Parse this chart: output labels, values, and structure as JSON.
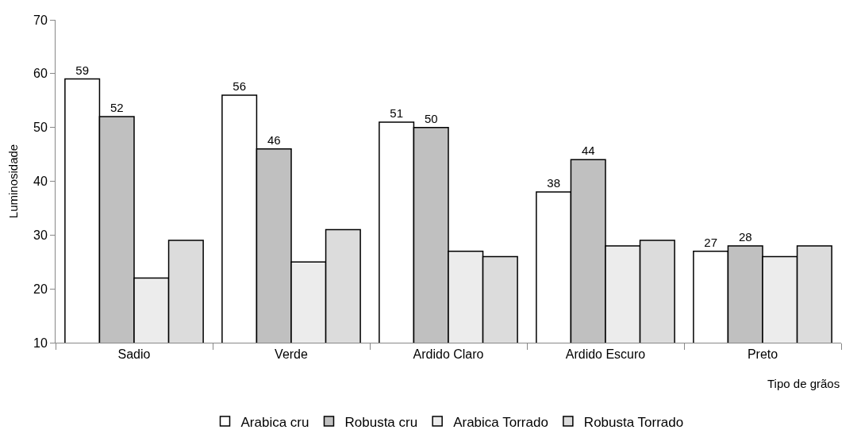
{
  "chart_data": {
    "type": "bar",
    "xlabel": "Tipo de grãos",
    "ylabel": "Luminosidade",
    "categories": [
      "Sadio",
      "Verde",
      "Ardido Claro",
      "Ardido Escuro",
      "Preto"
    ],
    "series": [
      {
        "name": "Arabica cru",
        "color": "#ffffff",
        "values": [
          59,
          56,
          51,
          38,
          27
        ],
        "value_labels": [
          "59",
          "56",
          "51",
          "38",
          "27"
        ]
      },
      {
        "name": "Robusta cru",
        "color": "#c0c0c0",
        "values": [
          52,
          46,
          50,
          44,
          28
        ],
        "value_labels": [
          "52",
          "46",
          "50",
          "44",
          "28"
        ]
      },
      {
        "name": "Arabica Torrado",
        "color": "#ececec",
        "values": [
          22,
          25,
          27,
          28,
          26
        ]
      },
      {
        "name": "Robusta Torrado",
        "color": "#dcdcdc",
        "values": [
          29,
          31,
          26,
          29,
          28
        ]
      }
    ],
    "ylim": [
      10,
      70
    ],
    "yticks": [
      10,
      20,
      30,
      40,
      50,
      60,
      70
    ],
    "legend": "bottom"
  }
}
